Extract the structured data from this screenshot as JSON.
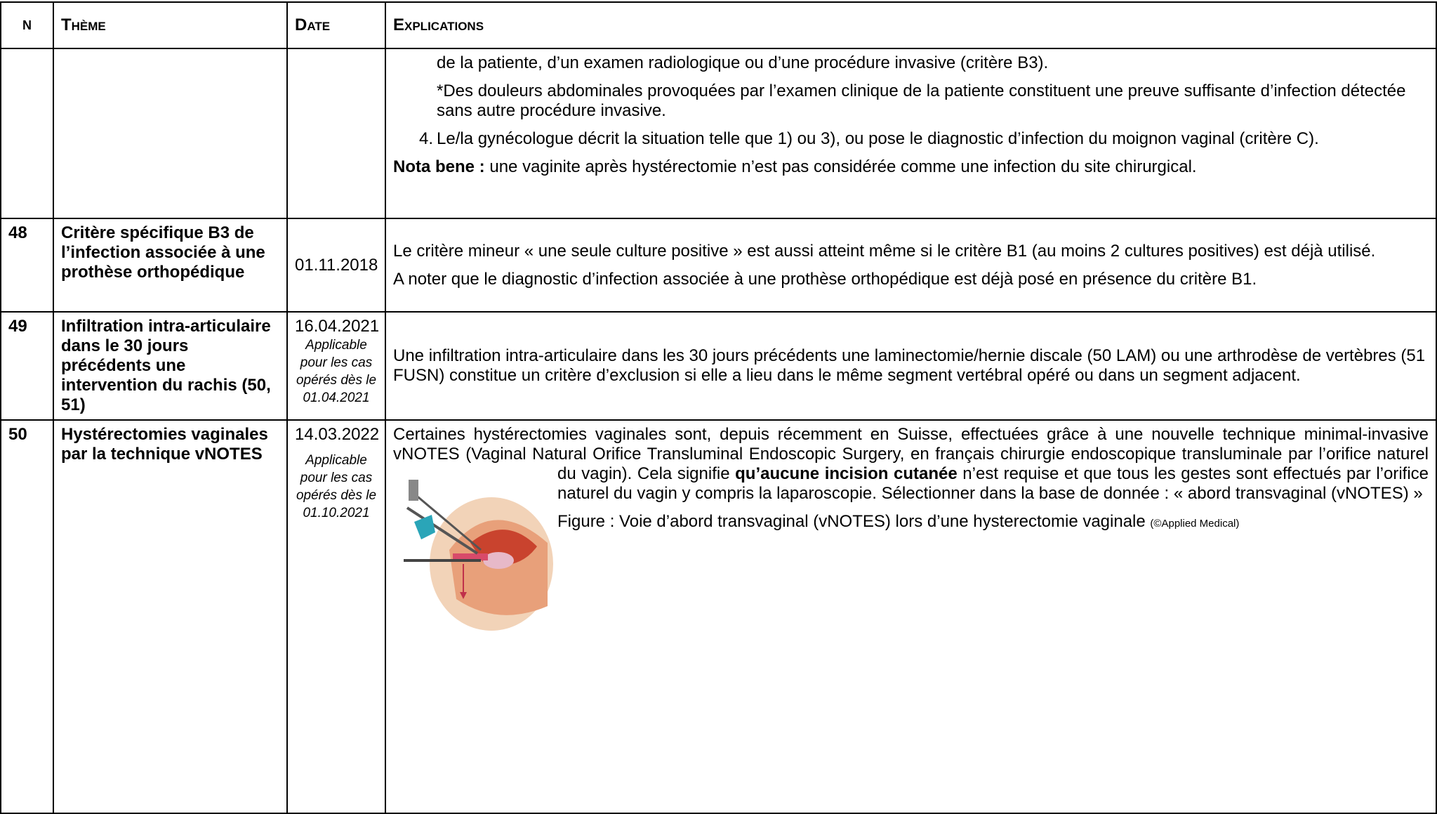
{
  "header": {
    "n": "N",
    "theme": "Thème",
    "date": "Date",
    "explications": "Explications"
  },
  "rows": [
    {
      "explications": {
        "p1": "de la patiente, d’un examen radiologique ou d’une procédure invasive (critère B3).",
        "p2": "*Des douleurs abdominales provoquées par l’examen clinique de la patiente constituent une preuve suffisante d’infection détectée sans autre procédure invasive.",
        "item_number": "4.",
        "item_text": "Le/la gynécologue décrit la situation telle que 1) ou 3), ou pose le diagnostic d’infection du moignon vaginal (critère C).",
        "note_label": "Nota bene :",
        "note_text": "une vaginite après hystérectomie n’est pas considérée comme une infection du site chirurgical."
      }
    },
    {
      "n": "48",
      "theme": "Critère spécifique B3 de l’infection associée à une prothèse orthopédique",
      "date": "01.11.2018",
      "explications": {
        "p1": "Le critère mineur « une seule culture positive » est aussi atteint même si le critère B1 (au moins 2 cultures positives) est déjà utilisé.",
        "p2": "A noter que le diagnostic d’infection associée à une prothèse orthopédique est déjà posé en présence du critère B1."
      }
    },
    {
      "n": "49",
      "theme": "Infiltration intra-articulaire dans le 30 jours précédents une intervention du rachis (50, 51)",
      "date": "16.04.2021",
      "date_note": "Applicable pour les cas opérés dès le 01.04.2021",
      "explications": {
        "p1": "Une infiltration intra-articulaire dans les 30 jours précédents une laminectomie/hernie discale (50 LAM) ou une arthrodèse de vertèbres (51 FUSN) constitue un critère d’exclusion si elle a lieu dans le même segment vertébral opéré ou dans un segment adjacent."
      }
    },
    {
      "n": "50",
      "theme": "Hystérectomies vaginales par la technique vNOTES",
      "date": "14.03.2022",
      "date_note": "Applicable pour les cas opérés dès le 01.10.2021",
      "explications": {
        "p1_start": "Certaines hystérectomies vaginales sont, depuis récemment en Suisse, effectuées grâce à une nouvelle technique minimal-invasive vNOTES (Vaginal Natural Orifice Transluminal Endoscopic Surgery, en français chirurgie endoscopique transluminale par l’orifice naturel du vagin). Cela signifie",
        "p1_bold": "qu’aucune incision cutanée",
        "p1_end": "n’est requise et que tous les gestes sont effectués par l’orifice naturel du vagin y compris la laparoscopie. Sélectionner dans la base de donnée : « abord transvaginal (vNOTES) »",
        "caption": "Figure : Voie d’abord transvaginal (vNOTES) lors d’une hysterectomie vaginale",
        "credit": "(©Applied Medical)"
      }
    }
  ]
}
